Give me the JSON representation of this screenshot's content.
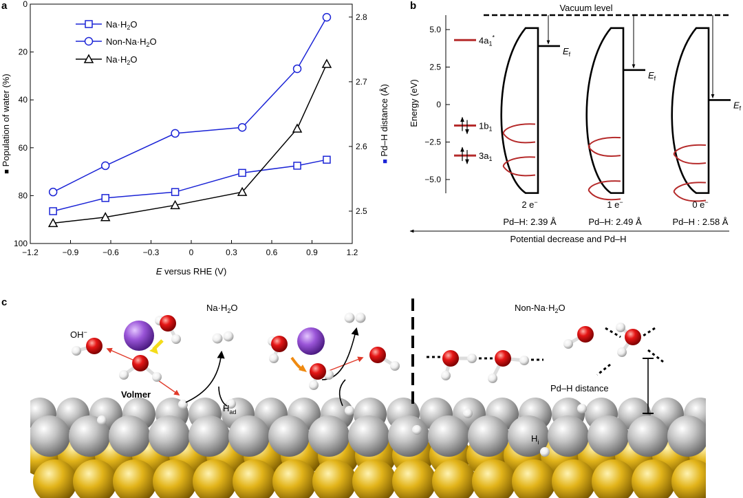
{
  "panel_labels": {
    "a": "a",
    "b": "b",
    "c": "c"
  },
  "chart_data": [
    {
      "type": "line",
      "panel": "a",
      "title": "",
      "xlabel_italic": "E",
      "xlabel_rest": " versus RHE (V)",
      "ylabel_left": "Population of water (%)",
      "ylabel_left_marker": "■",
      "ylabel_right": "Pd–H distance (Å)",
      "ylabel_right_marker": "■",
      "xlim": [
        -1.2,
        1.2
      ],
      "ylim_left": [
        100,
        0
      ],
      "ylim_right": [
        2.45,
        2.82
      ],
      "x_ticks": [
        -1.2,
        -0.9,
        -0.6,
        -0.3,
        0,
        0.3,
        0.6,
        0.9,
        1.2
      ],
      "x_tick_labels": [
        "−1.2",
        "−0.9",
        "−0.6",
        "−0.3",
        "0",
        "0.3",
        "0.6",
        "0.9",
        "1.2"
      ],
      "y_left_ticks": [
        0,
        20,
        40,
        60,
        80,
        100
      ],
      "y_left_tick_labels": [
        "0",
        "20",
        "40",
        "60",
        "80",
        "100"
      ],
      "y_right_ticks": [
        2.5,
        2.6,
        2.7,
        2.8
      ],
      "y_right_tick_labels": [
        "2.5",
        "2.6",
        "2.7",
        "2.8"
      ],
      "x": [
        -1.03,
        -0.64,
        -0.12,
        0.38,
        0.79,
        1.01
      ],
      "series": [
        {
          "name": "Na·H",
          "sub": "2",
          "name_end": "O",
          "axis": "left",
          "marker": "square",
          "color": "#1a23d6",
          "values": [
            86.5,
            81,
            78.5,
            70.5,
            67.5,
            65
          ]
        },
        {
          "name": "Non-Na·H",
          "sub": "2",
          "name_end": "O",
          "axis": "left",
          "marker": "circle",
          "color": "#1a23d6",
          "values": [
            78.5,
            67.5,
            54,
            51.5,
            27,
            5.5
          ]
        },
        {
          "name": "Na·H",
          "sub": "2",
          "name_end": "O",
          "axis": "left",
          "marker": "triangle",
          "color": "#000000",
          "values": [
            91.5,
            89,
            84,
            78.5,
            52,
            25
          ]
        }
      ],
      "legend": "top-left",
      "grid": false
    },
    {
      "type": "diagram",
      "panel": "b",
      "ylabel": "Energy (eV)",
      "ylim": [
        -6.0,
        5.8
      ],
      "y_ticks": [
        5.0,
        2.5,
        0,
        -2.5,
        -5.0
      ],
      "y_tick_labels": [
        "5.0",
        "2.5",
        "0",
        "−2.5",
        "−5.0"
      ],
      "vacuum_label": "Vacuum level",
      "orbitals": [
        {
          "base": "4a",
          "sub": "1",
          "sup": "*",
          "energy": 4.3,
          "spin": ""
        },
        {
          "base": "1b",
          "sub": "1",
          "sup": "",
          "energy": -1.4,
          "spin": "↑↓"
        },
        {
          "base": "3a",
          "sub": "1",
          "sup": "",
          "energy": -3.4,
          "spin": "↑↓"
        }
      ],
      "fermi_label": "E",
      "fermi_sub": "f",
      "states": [
        {
          "electrons": "2 e",
          "electrons_sup": "−",
          "pdh": "Pd–H: 2.39 Å",
          "fermi_energy": 3.9
        },
        {
          "electrons": "1 e",
          "electrons_sup": "−",
          "pdh": "Pd–H: 2.49 Å",
          "fermi_energy": 2.3
        },
        {
          "electrons": "0 e",
          "electrons_sup": "−",
          "pdh": "Pd–H : 2.58 Å",
          "fermi_energy": 0.3
        }
      ],
      "arrow_label": "Potential decrease and Pd–H"
    }
  ],
  "panel_c": {
    "left_title_main": "Na·H",
    "left_title_sub": "2",
    "left_title_end": "O",
    "right_title_main": "Non-Na·H",
    "right_title_sub": "2",
    "right_title_end": "O",
    "hydroxide": "OH",
    "hydroxide_sup": "−",
    "volmer": "Volmer",
    "h_ad": "H",
    "h_ad_sub": "ad",
    "pdh_distance": "Pd–H distance",
    "h_i": "H",
    "h_i_sub": "i"
  },
  "colors": {
    "blue": "#1a23d6",
    "black": "#000000",
    "orbital_red": "#b52a2a",
    "oxygen": "#e01010",
    "hydrogen": "#f4f4f4",
    "sodium": "#9a55d8",
    "pd_gray": "#b8b8b8",
    "gold": "#d9a914",
    "arrow_red": "#e03a2a",
    "arrow_yellow": "#f4dc1a",
    "arrow_orange": "#ef8a10"
  }
}
